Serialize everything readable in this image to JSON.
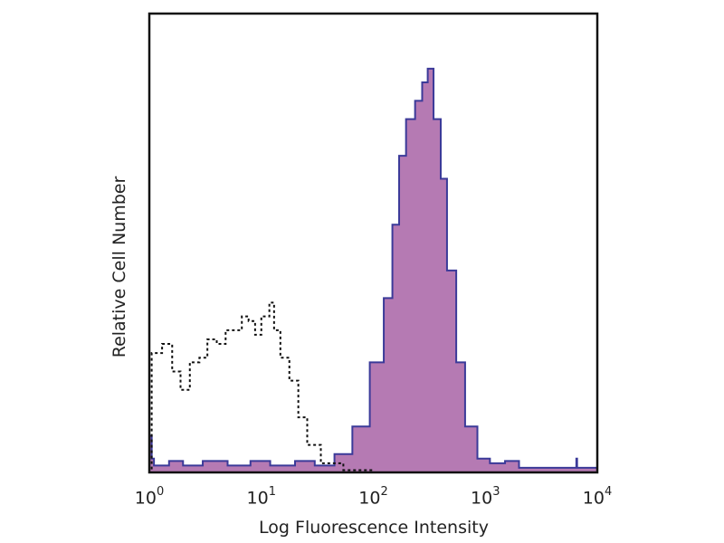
{
  "chart_data": {
    "type": "area",
    "title": "",
    "xlabel": "Log Fluorescence Intensity",
    "ylabel": "Relative Cell Number",
    "xscale": "log",
    "xlim": [
      1,
      10000
    ],
    "ylim": [
      0,
      100
    ],
    "grid": false,
    "x_ticks": [
      {
        "base": "10",
        "exp": "0"
      },
      {
        "base": "10",
        "exp": "1"
      },
      {
        "base": "10",
        "exp": "2"
      },
      {
        "base": "10",
        "exp": "3"
      },
      {
        "base": "10",
        "exp": "4"
      }
    ],
    "x_tick_values": [
      1,
      10,
      100,
      1000,
      10000
    ],
    "series": [
      {
        "style": "filled-solid",
        "fill": "#b57ab3",
        "stroke": "#3b3a99",
        "x": [
          1.0,
          1.05,
          1.1,
          1.5,
          2,
          3,
          5,
          8,
          12,
          20,
          30,
          45,
          65,
          93,
          124,
          148,
          170,
          196,
          236,
          273,
          306,
          345,
          400,
          455,
          550,
          660,
          850,
          1100,
          1500,
          2000,
          6500,
          6600,
          9000,
          10000
        ],
        "y": [
          8,
          3,
          1.5,
          2.5,
          1.5,
          2.5,
          1.5,
          2.5,
          1.5,
          2.5,
          1.5,
          4,
          10,
          24,
          38,
          54,
          69,
          77,
          81,
          85,
          88,
          77,
          64,
          44,
          24,
          10,
          3,
          2,
          2.5,
          1,
          3,
          1,
          1,
          2
        ]
      },
      {
        "style": "dashed-outline",
        "stroke": "#111111",
        "x": [
          1.0,
          1.05,
          1.3,
          1.6,
          1.9,
          2.3,
          2.8,
          3.3,
          4,
          4.8,
          5.8,
          6.7,
          7.7,
          8.8,
          10,
          11.8,
          13,
          14.8,
          17.8,
          21.4,
          25.7,
          34,
          54,
          100,
          1000
        ],
        "y": [
          0,
          26,
          28,
          22,
          18,
          24,
          25,
          29,
          28,
          31,
          31,
          34,
          33,
          30,
          34,
          37,
          31,
          25,
          20,
          12,
          6,
          2,
          0.5,
          0,
          0
        ]
      }
    ]
  }
}
